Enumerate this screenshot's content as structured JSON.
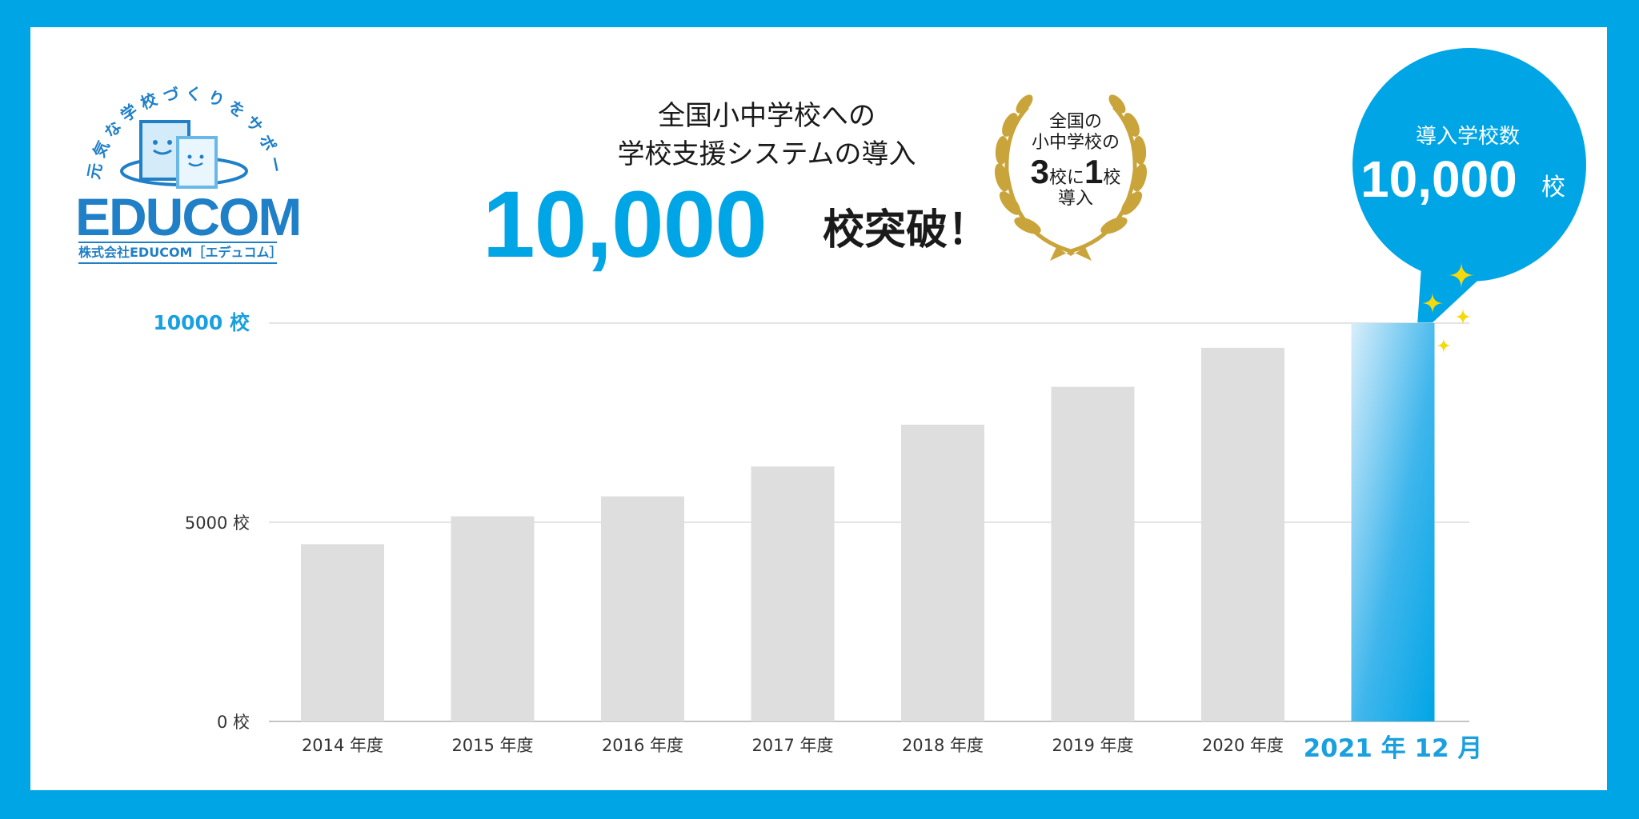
{
  "logo": {
    "tagline": "元気な学校づくりをサポート",
    "wordmark": "EDUCOM",
    "company": "株式会社EDUCOM［エデュコム］"
  },
  "headline": {
    "line1": "全国小中学校への",
    "line2": "学校支援システムの導入",
    "big_number": "10,000",
    "suffix": "校突破！"
  },
  "badge": {
    "line1": "全国の",
    "line2": "小中学校の",
    "count_a": "3",
    "unit_a": "校に",
    "count_b": "1",
    "unit_b": "校",
    "line4": "導入"
  },
  "bubble": {
    "caption": "導入学校数",
    "number": "10,000",
    "unit": "校"
  },
  "colors": {
    "accent": "#00a5e6",
    "bar": "#dedede",
    "gold": "#c9a43a",
    "sparkle": "#f5d90a"
  },
  "chart_data": {
    "type": "bar",
    "categories": [
      "2014 年度",
      "2015 年度",
      "2016 年度",
      "2017 年度",
      "2018 年度",
      "2019 年度",
      "2020 年度",
      "2021 年 12 月"
    ],
    "values": [
      4450,
      5150,
      5650,
      6400,
      7450,
      8400,
      9380,
      10000
    ],
    "highlight_index": 7,
    "ylim": [
      0,
      10000
    ],
    "yticks": [
      {
        "value": 0,
        "label": "0 校"
      },
      {
        "value": 5000,
        "label": "5000 校"
      },
      {
        "value": 10000,
        "label": "10000 校"
      }
    ],
    "grid": true
  }
}
